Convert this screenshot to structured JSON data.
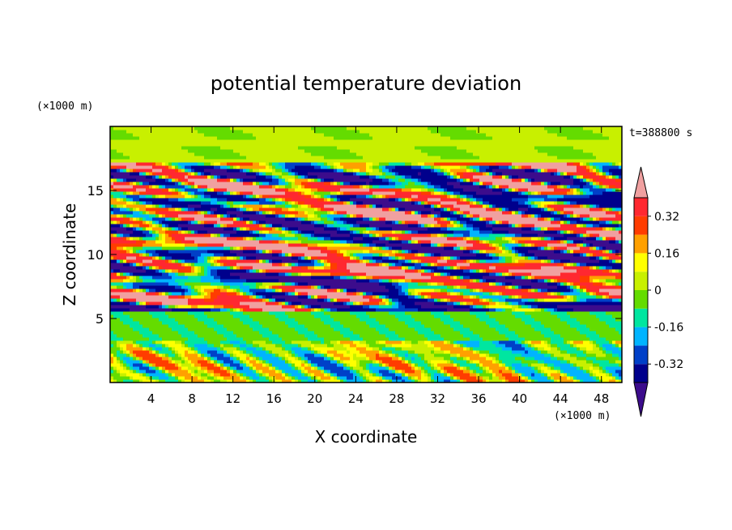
{
  "chart_data": {
    "type": "heatmap",
    "title": "potential temperature deviation",
    "xlabel": "X coordinate",
    "ylabel": "Z coordinate",
    "x_unit": "(×1000 m)",
    "y_unit": "(×1000 m)",
    "time_label": "t=388800 s",
    "xlim": [
      0,
      50
    ],
    "ylim": [
      0,
      20
    ],
    "x_ticks": [
      4,
      8,
      12,
      16,
      20,
      24,
      28,
      32,
      36,
      40,
      44,
      48
    ],
    "y_ticks": [
      5,
      10,
      15
    ],
    "colorbar": {
      "levels": [
        -0.4,
        -0.32,
        -0.24,
        -0.16,
        -0.08,
        0,
        0.08,
        0.16,
        0.24,
        0.32,
        0.4
      ],
      "colors": [
        "#3c0c8c",
        "#00008c",
        "#0040c8",
        "#00b4ff",
        "#00e6a0",
        "#64dc00",
        "#c8f000",
        "#ffff00",
        "#ffa000",
        "#ff3c00",
        "#ff2830",
        "#f0a0a0"
      ],
      "labels": [
        {
          "value": -0.32,
          "text": "-0.32"
        },
        {
          "value": -0.16,
          "text": "-0.16"
        },
        {
          "value": 0,
          "text": "0"
        },
        {
          "value": 0.16,
          "text": "0.16"
        },
        {
          "value": 0.32,
          "text": "0.32"
        }
      ],
      "extend": "both"
    }
  }
}
